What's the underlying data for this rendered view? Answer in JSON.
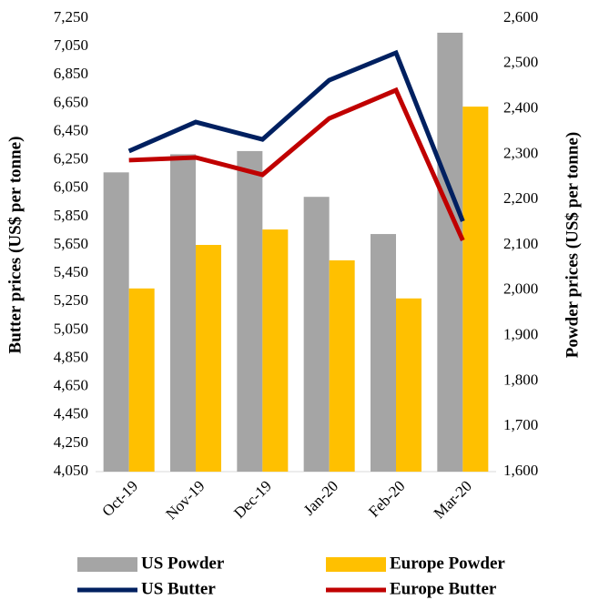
{
  "chart_data": {
    "type": "bar",
    "categories": [
      "Oct-19",
      "Nov-19",
      "Dec-19",
      "Jan-20",
      "Feb-20",
      "Mar-20"
    ],
    "ylabel": "Butter prices (US$ per tonne)",
    "y2label": "Powder prices (US$ per tonne)",
    "ylim": [
      4050,
      7250
    ],
    "yticks": [
      {
        "value": 4050,
        "label": "4,050"
      },
      {
        "value": 4250,
        "label": "4,250"
      },
      {
        "value": 4450,
        "label": "4,450"
      },
      {
        "value": 4650,
        "label": "4,650"
      },
      {
        "value": 4850,
        "label": "4,850"
      },
      {
        "value": 5050,
        "label": "5,050"
      },
      {
        "value": 5250,
        "label": "5,250"
      },
      {
        "value": 5450,
        "label": "5,450"
      },
      {
        "value": 5650,
        "label": "5,650"
      },
      {
        "value": 5850,
        "label": "5,850"
      },
      {
        "value": 6050,
        "label": "6,050"
      },
      {
        "value": 6250,
        "label": "6,250"
      },
      {
        "value": 6450,
        "label": "6,450"
      },
      {
        "value": 6650,
        "label": "6,650"
      },
      {
        "value": 6850,
        "label": "6,850"
      },
      {
        "value": 7050,
        "label": "7,050"
      },
      {
        "value": 7250,
        "label": "7,250"
      }
    ],
    "y2lim": [
      1600,
      2600
    ],
    "y2ticks": [
      {
        "value": 1600,
        "label": "1,600"
      },
      {
        "value": 1700,
        "label": "1,700"
      },
      {
        "value": 1800,
        "label": "1,800"
      },
      {
        "value": 1900,
        "label": "1,900"
      },
      {
        "value": 2000,
        "label": "2,000"
      },
      {
        "value": 2100,
        "label": "2,100"
      },
      {
        "value": 2200,
        "label": "2,200"
      },
      {
        "value": 2300,
        "label": "2,300"
      },
      {
        "value": 2400,
        "label": "2,400"
      },
      {
        "value": 2500,
        "label": "2,500"
      },
      {
        "value": 2600,
        "label": "2,600"
      }
    ],
    "series": [
      {
        "name": "US Powder",
        "type": "bar",
        "axis": "y2",
        "color": "#a5a5a5",
        "values": [
          2260,
          2300,
          2307,
          2206,
          2124,
          2568
        ]
      },
      {
        "name": "Europe Powder",
        "type": "bar",
        "axis": "y2",
        "color": "#ffc000",
        "values": [
          2004,
          2100,
          2134,
          2066,
          1982,
          2405
        ]
      },
      {
        "name": "US Butter",
        "type": "line",
        "axis": "y",
        "color": "#002060",
        "values": [
          6312,
          6517,
          6395,
          6813,
          7006,
          5817
        ]
      },
      {
        "name": "Europe Butter",
        "type": "line",
        "axis": "y",
        "color": "#c00000",
        "values": [
          6248,
          6267,
          6145,
          6543,
          6742,
          5682
        ]
      }
    ]
  }
}
